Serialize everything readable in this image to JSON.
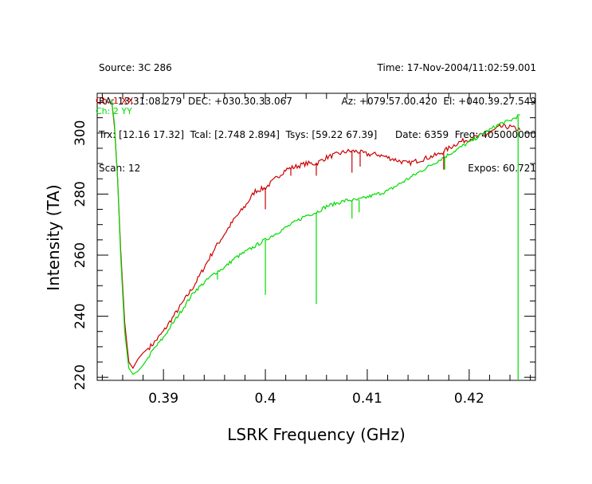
{
  "header": {
    "left_lines": [
      "Source: 3C 286",
      "RA: 13:31:08.279  DEC: +030.30.33.067",
      "Trx: [12.16 17.32]  Tcal: [2.748 2.894]  Tsys: [59.22 67.39]",
      "Scan: 12"
    ],
    "right_lines": [
      "Time: 17-Nov-2004/11:02:59.001",
      "Az: +079.57.00.420  El: +040.39.27.549",
      "Date: 6359  Freq: 405000000",
      "Expos: 60.721"
    ]
  },
  "colors": {
    "xx": "#cc0000",
    "yy": "#00dd00",
    "axes": "#000000"
  },
  "chart_data": {
    "type": "line",
    "title": "",
    "xlabel": "LSRK Frequency (GHz)",
    "ylabel": "Intensity (TA)",
    "xlim": [
      0.3835,
      0.4265
    ],
    "ylim": [
      219,
      313
    ],
    "xticks": [
      0.39,
      0.4,
      0.41,
      0.42
    ],
    "xtick_labels": [
      "0.39",
      "0.4",
      "0.41",
      "0.42"
    ],
    "yticks": [
      220,
      240,
      260,
      280,
      300
    ],
    "ytick_labels": [
      "220",
      "240",
      "260",
      "280",
      "300"
    ],
    "legend_position": "top-left",
    "series": [
      {
        "name": "Ch: 1 XX",
        "color": "#cc0000",
        "x": [
          0.3849,
          0.3852,
          0.3855,
          0.3858,
          0.3862,
          0.3866,
          0.387,
          0.3875,
          0.388,
          0.389,
          0.39,
          0.391,
          0.392,
          0.393,
          0.394,
          0.395,
          0.396,
          0.397,
          0.398,
          0.399,
          0.4,
          0.401,
          0.402,
          0.403,
          0.404,
          0.405,
          0.406,
          0.407,
          0.408,
          0.409,
          0.41,
          0.411,
          0.412,
          0.413,
          0.414,
          0.415,
          0.416,
          0.417,
          0.418,
          0.419,
          0.42,
          0.421,
          0.422,
          0.423,
          0.424,
          0.425
        ],
        "y": [
          311,
          302,
          285,
          262,
          238,
          225,
          223,
          226,
          228,
          231,
          235,
          240,
          245,
          250,
          256,
          262,
          267,
          272,
          276,
          281,
          282,
          285,
          288,
          289,
          290,
          290,
          292,
          293,
          294,
          294,
          293,
          293,
          292,
          291,
          290,
          291,
          292,
          293,
          295,
          297,
          298,
          299,
          300,
          302,
          302,
          301
        ]
      },
      {
        "name": "Ch: 2 YY",
        "color": "#00dd00",
        "x": [
          0.3849,
          0.3852,
          0.3855,
          0.3858,
          0.3862,
          0.3866,
          0.387,
          0.3875,
          0.388,
          0.389,
          0.39,
          0.391,
          0.392,
          0.393,
          0.394,
          0.395,
          0.396,
          0.397,
          0.398,
          0.399,
          0.4,
          0.401,
          0.402,
          0.403,
          0.404,
          0.405,
          0.406,
          0.407,
          0.408,
          0.409,
          0.41,
          0.411,
          0.412,
          0.413,
          0.414,
          0.415,
          0.416,
          0.417,
          0.418,
          0.419,
          0.42,
          0.421,
          0.422,
          0.423,
          0.424,
          0.425
        ],
        "y": [
          311,
          303,
          285,
          260,
          235,
          223,
          221,
          222,
          224,
          229,
          233,
          238,
          243,
          248,
          251,
          254,
          256,
          259,
          261,
          263,
          265,
          267,
          269,
          271,
          273,
          274,
          276,
          277,
          278,
          278,
          279,
          280,
          281,
          283,
          285,
          287,
          289,
          291,
          293,
          295,
          297,
          299,
          301,
          303,
          304,
          306
        ]
      }
    ],
    "spikes": [
      {
        "series": 0,
        "x": 0.4,
        "y": 275
      },
      {
        "series": 0,
        "x": 0.4025,
        "y": 286
      },
      {
        "series": 0,
        "x": 0.405,
        "y": 286
      },
      {
        "series": 0,
        "x": 0.4085,
        "y": 287
      },
      {
        "series": 0,
        "x": 0.4093,
        "y": 289
      },
      {
        "series": 0,
        "x": 0.4175,
        "y": 288
      },
      {
        "series": 1,
        "x": 0.4,
        "y": 247
      },
      {
        "series": 1,
        "x": 0.405,
        "y": 244
      },
      {
        "series": 1,
        "x": 0.4085,
        "y": 272
      },
      {
        "series": 1,
        "x": 0.4092,
        "y": 274
      },
      {
        "series": 1,
        "x": 0.3953,
        "y": 252
      },
      {
        "series": 1,
        "x": 0.4176,
        "y": 288
      },
      {
        "series": 1,
        "x": 0.4248,
        "y": 219
      }
    ]
  }
}
